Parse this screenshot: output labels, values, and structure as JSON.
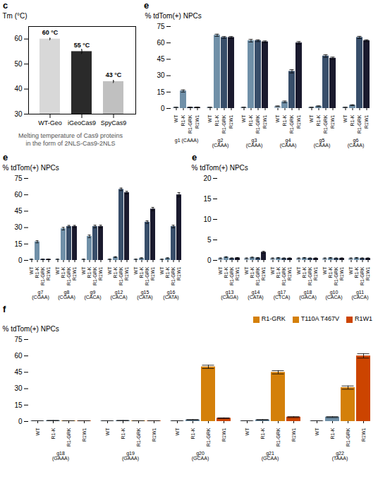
{
  "chart_data": [
    {
      "type": "bar",
      "title": "c",
      "subtitle": "Melting temperature of Cas9 proteins\nin the form of 2NLS-Cas9-2NLS",
      "categories": [
        "WT-Geo",
        "iGeoCas9",
        "SpyCas9"
      ],
      "values": [
        60,
        55,
        43
      ],
      "errors": [
        0.3,
        0.8,
        0.4
      ],
      "colors": [
        "#d8d8d8",
        "#2a2a2a",
        "#c0c0c0"
      ],
      "ylabel": "Tm (°C)",
      "ylim": [
        30,
        65
      ],
      "yticks": [
        30,
        40,
        50,
        60
      ],
      "data_labels": true,
      "value_labels": [
        "60 °C",
        "55 °C",
        "43 °C"
      ]
    },
    {
      "type": "bar",
      "title": "e",
      "categories": [
        "g1 (CAAA)",
        "g2 (CAAA)",
        "g3 (CAAA)",
        "g4 (CAAA)",
        "g5 (CAAA)",
        "g6 (CAAA)"
      ],
      "ylabel": "% tdTom(+) NPCs",
      "ylim": [
        0,
        75
      ],
      "yticks": [
        0,
        15,
        30,
        45,
        60,
        75
      ],
      "series": [
        {
          "name": "WT",
          "color": "#aabccc",
          "values": [
            1,
            1,
            1,
            2,
            1,
            1
          ],
          "errors": [
            0.2,
            0.2,
            0.2,
            0.3,
            0.2,
            0.2
          ]
        },
        {
          "name": "R1-K",
          "color": "#7090a8",
          "values": [
            16,
            67,
            62,
            6,
            2,
            3
          ],
          "errors": [
            1.0,
            1.0,
            1.2,
            0.8,
            0.4,
            0.4
          ]
        },
        {
          "name": "R1-GRK",
          "color": "#384e6a",
          "values": [
            1,
            65,
            62,
            34,
            48,
            65
          ],
          "errors": [
            0.3,
            0.8,
            0.8,
            1.5,
            1.2,
            1.0
          ]
        },
        {
          "name": "R1W1",
          "color": "#1a1a2e",
          "values": [
            1,
            65,
            61,
            60,
            46,
            62
          ],
          "errors": [
            0.3,
            0.8,
            0.8,
            1.2,
            1.0,
            0.8
          ]
        }
      ]
    },
    {
      "type": "bar",
      "title": "e",
      "categories": [
        "g7 (CGAA)",
        "g8 (CGAA)",
        "g9 (CACA)",
        "g12 (CACA)",
        "g15 (CATA)",
        "g16 (CATA)"
      ],
      "ylabel": "% tdTom(+) NPCs",
      "ylim": [
        0,
        75
      ],
      "yticks": [
        0,
        15,
        30,
        45,
        60,
        75
      ],
      "series": [
        {
          "name": "WT",
          "color": "#aabccc",
          "values": [
            1,
            1,
            1,
            1,
            1,
            1
          ],
          "errors": [
            0.2,
            0.2,
            0.2,
            0.2,
            0.2,
            0.2
          ]
        },
        {
          "name": "R1-K",
          "color": "#7090a8",
          "values": [
            17,
            29,
            22,
            3,
            2,
            2
          ],
          "errors": [
            1.0,
            1.2,
            1.2,
            0.4,
            0.4,
            0.4
          ]
        },
        {
          "name": "R1-GRK",
          "color": "#384e6a",
          "values": [
            1,
            31,
            31,
            65,
            35,
            31
          ],
          "errors": [
            0.2,
            1.0,
            1.2,
            1.2,
            1.2,
            1.2
          ]
        },
        {
          "name": "R1W1",
          "color": "#1a1a2e",
          "values": [
            1,
            31,
            31,
            62,
            47,
            60
          ],
          "errors": [
            0.2,
            1.0,
            1.2,
            1.2,
            1.5,
            2.0
          ]
        }
      ]
    },
    {
      "type": "bar",
      "title": "e",
      "categories": [
        "g13 (CAGA)",
        "g14 (CATA)",
        "g17 (CTCA)",
        "g18 (GACA)",
        "g10 (CACA)",
        "g11 (CACA)"
      ],
      "ylabel": "% tdTom(+) NPCs",
      "ylim": [
        0,
        20
      ],
      "yticks": [
        0,
        5,
        10,
        15,
        20
      ],
      "series": [
        {
          "name": "WT",
          "color": "#aabccc",
          "values": [
            0.5,
            0.5,
            0.5,
            0.5,
            0.5,
            0.5
          ],
          "errors": [
            0.1,
            0.1,
            0.1,
            0.1,
            0.1,
            0.1
          ]
        },
        {
          "name": "R1-K",
          "color": "#7090a8",
          "values": [
            0.8,
            0.7,
            0.6,
            0.6,
            0.6,
            0.6
          ],
          "errors": [
            0.1,
            0.1,
            0.1,
            0.1,
            0.1,
            0.1
          ]
        },
        {
          "name": "R1-GRK",
          "color": "#384e6a",
          "values": [
            0.5,
            0.6,
            0.5,
            0.5,
            0.5,
            0.5
          ],
          "errors": [
            0.1,
            0.1,
            0.1,
            0.1,
            0.1,
            0.1
          ]
        },
        {
          "name": "R1W1",
          "color": "#1a1a2e",
          "values": [
            0.6,
            2.0,
            0.5,
            0.5,
            0.5,
            0.5
          ],
          "errors": [
            0.1,
            0.2,
            0.1,
            0.1,
            0.1,
            0.1
          ]
        }
      ]
    },
    {
      "type": "bar",
      "title": "f",
      "categories": [
        "g18 (GAAA)",
        "g19 (GAAA)",
        "g20 (GCAA)",
        "g21 (GCAA)",
        "g22 (TAAA)"
      ],
      "ylabel": "% tdTom(+) NPCs",
      "ylim": [
        0,
        75
      ],
      "yticks": [
        0,
        15,
        30,
        45,
        60,
        75
      ],
      "series": [
        {
          "name": "WT",
          "color": "#aabccc",
          "values": [
            0.5,
            0.5,
            0.5,
            0.5,
            0.5
          ],
          "errors": [
            0.1,
            0.1,
            0.1,
            0.1,
            0.1
          ]
        },
        {
          "name": "R1-K",
          "color": "#7090a8",
          "values": [
            0.8,
            0.8,
            1.5,
            1.5,
            4
          ],
          "errors": [
            0.1,
            0.1,
            0.2,
            0.2,
            0.4
          ]
        },
        {
          "name": "R1-GRK",
          "color": "#d4800a",
          "values": [
            0.5,
            0.5,
            50,
            45,
            31
          ],
          "errors": [
            0.1,
            0.1,
            1.5,
            1.5,
            1.5
          ]
        },
        {
          "name": "R1W1",
          "color": "#cc4400",
          "values": [
            0.5,
            0.5,
            3,
            4,
            60
          ],
          "errors": [
            0.1,
            0.1,
            0.3,
            0.4,
            2.0
          ]
        }
      ],
      "legend": "upper right",
      "legend_entries": [
        {
          "name": "R1-GRK",
          "color": "#d4800a"
        },
        {
          "name": "T110A T467V",
          "color": "#d4800a"
        },
        {
          "name": "R1W1",
          "color": "#cc4400"
        }
      ]
    }
  ]
}
